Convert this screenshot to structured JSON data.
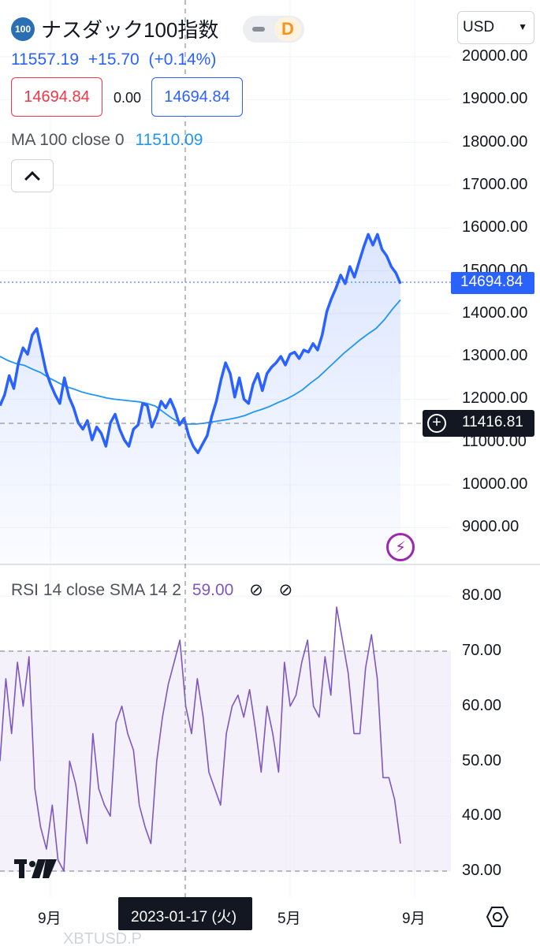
{
  "header": {
    "logo_text": "100",
    "symbol_name": "ナスダック100指数",
    "status_badge": "D",
    "currency": "USD"
  },
  "quote": {
    "last_price": "11557.19",
    "change": "+15.70",
    "change_pct": "(+0.14%)",
    "sell_price": "14694.84",
    "spread": "0.00",
    "buy_price": "14694.84"
  },
  "ma_legend": {
    "label": "MA",
    "params": "100 close 0",
    "value": "11510.09"
  },
  "rsi_legend": {
    "label": "RSI",
    "params": "14 close SMA 14 2",
    "value": "59.00"
  },
  "price_axis": {
    "labels": [
      "20000.00",
      "19000.00",
      "18000.00",
      "17000.00",
      "16000.00",
      "15000.00",
      "14000.00",
      "13000.00",
      "12000.00",
      "11000.00",
      "10000.00",
      "9000.00"
    ],
    "current_price_tag": "14694.84",
    "crosshair_price_tag": "11416.81"
  },
  "rsi_axis": {
    "labels": [
      "80.00",
      "70.00",
      "60.00",
      "50.00",
      "40.00",
      "30.00"
    ]
  },
  "time_axis": {
    "labels": [
      "9月",
      "5月",
      "9月"
    ],
    "crosshair_date": "2023-01-17 (火)"
  },
  "watermark": "XBTUSD.P",
  "colors": {
    "price_line": "#2962ff",
    "ma_line": "#2196f3",
    "rsi_line": "#7e57c2",
    "rsi_band": "#ede7f6",
    "sell": "#f23645",
    "buy": "#2962ff"
  },
  "chart_data": [
    {
      "type": "line",
      "title": "ナスダック100指数",
      "ylim": [
        8500,
        20500
      ],
      "series": [
        {
          "name": "close",
          "values": [
            11850,
            12100,
            12550,
            12250,
            12850,
            13200,
            13050,
            13500,
            13650,
            13150,
            12650,
            12350,
            12100,
            11900,
            12500,
            12050,
            11800,
            11450,
            11300,
            11500,
            11050,
            11350,
            11200,
            10900,
            11450,
            11650,
            11300,
            11050,
            10900,
            11300,
            11400,
            11900,
            11850,
            11350,
            11600,
            11950,
            11800,
            12000,
            11750,
            11400,
            11550,
            11150,
            10900,
            10750,
            10950,
            11150,
            11600,
            11950,
            12450,
            12850,
            12600,
            12050,
            12500,
            12000,
            11900,
            12350,
            12600,
            12200,
            12600,
            12750,
            12850,
            13000,
            12800,
            13050,
            13100,
            12950,
            13150,
            13100,
            13300,
            13150,
            13500,
            14050,
            14350,
            14600,
            14900,
            14700,
            15100,
            14850,
            15200,
            15550,
            15850,
            15600,
            15850,
            15500,
            15350,
            15100,
            14950,
            14700
          ]
        },
        {
          "name": "MA 100",
          "values": [
            13000,
            12900,
            12830,
            12790,
            12700,
            12620,
            12500,
            12400,
            12300,
            12240,
            12170,
            12120,
            12080,
            12030,
            12000,
            11980,
            11960,
            11940,
            11900,
            11840,
            11700,
            11560,
            11450,
            11420,
            11420,
            11440,
            11470,
            11500,
            11530,
            11570,
            11620,
            11700,
            11760,
            11830,
            11920,
            12000,
            12100,
            12220,
            12380,
            12520,
            12700,
            12880,
            13060,
            13220,
            13380,
            13520,
            13650,
            13850,
            14100,
            14320
          ]
        }
      ]
    },
    {
      "type": "line",
      "title": "RSI",
      "ylim": [
        28,
        82
      ],
      "series": [
        {
          "name": "RSI",
          "values": [
            50,
            65,
            55,
            68,
            60,
            69,
            45,
            38,
            34,
            42,
            32,
            30,
            50,
            46,
            40,
            35,
            55,
            45,
            42,
            40,
            57,
            60,
            55,
            52,
            42,
            38,
            35,
            50,
            58,
            64,
            68,
            72,
            60,
            55,
            65,
            58,
            48,
            45,
            42,
            55,
            60,
            62,
            58,
            63,
            56,
            48,
            60,
            55,
            48,
            68,
            60,
            62,
            68,
            72,
            60,
            58,
            69,
            62,
            78,
            72,
            66,
            55,
            55,
            67,
            73,
            65,
            47,
            47,
            43,
            35
          ]
        }
      ],
      "bands": [
        30,
        70
      ]
    }
  ]
}
